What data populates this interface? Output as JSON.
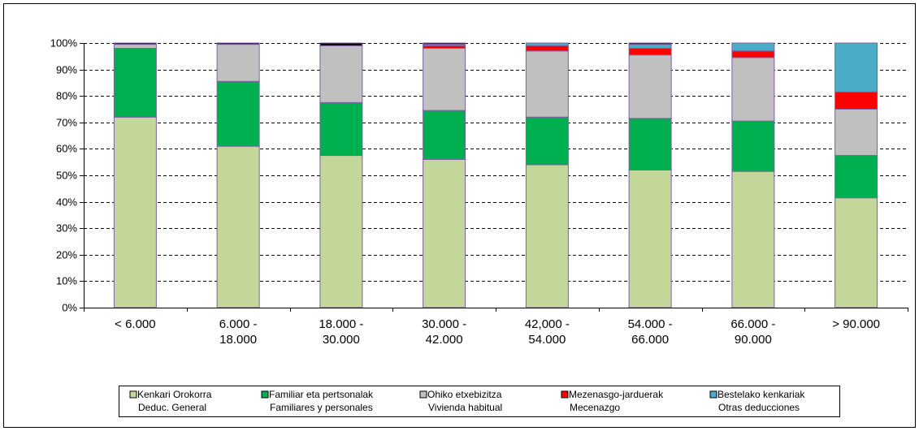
{
  "chart_data": {
    "type": "bar",
    "stacked": true,
    "categories": [
      [
        "< 6.000"
      ],
      [
        "6.000 -",
        "18.000"
      ],
      [
        "18.000 -",
        "30.000"
      ],
      [
        "30.000 -",
        "42.000"
      ],
      [
        "42,000 -",
        "54.000"
      ],
      [
        "54.000 -",
        "66.000"
      ],
      [
        "66.000 -",
        "90.000"
      ],
      [
        "> 90.000"
      ]
    ],
    "ylim": [
      0,
      100
    ],
    "yticks": [
      "0%",
      "10%",
      "20%",
      "30%",
      "40%",
      "50%",
      "60%",
      "70%",
      "80%",
      "90%",
      "100%"
    ],
    "grid": true,
    "legend_position": "bottom",
    "series": [
      {
        "name": [
          "Kenkari Orokorra",
          "Deduc. General"
        ],
        "color": "#c4d79b",
        "values": [
          72,
          61,
          57.5,
          56,
          54,
          52,
          51.5,
          41.5
        ]
      },
      {
        "name": [
          "Familiar eta pertsonalak",
          "Familiares y personales"
        ],
        "color": "#00b050",
        "values": [
          26,
          24.5,
          20,
          18.5,
          18,
          19.5,
          19,
          16
        ]
      },
      {
        "name": [
          "Ohiko etxebizitza",
          "Vivienda habitual"
        ],
        "color": "#c0c0c0",
        "values": [
          1.5,
          14,
          21.5,
          23.5,
          25,
          24,
          24,
          17.5
        ]
      },
      {
        "name": [
          "Mezenasgo-jarduerak",
          "Mecenazgo"
        ],
        "color": "#ff0000",
        "values": [
          0,
          0,
          0,
          1,
          2,
          2.5,
          2.5,
          6.5
        ]
      },
      {
        "name": [
          "Bestelako kenkariak",
          "Otras deducciones"
        ],
        "color": "#4bacc6",
        "values": [
          0,
          0,
          0,
          0.5,
          1,
          1.5,
          3,
          18.5
        ]
      },
      {
        "name": [
          "",
          ""
        ],
        "color": "#000000",
        "values": [
          0.5,
          0.5,
          1,
          0.5,
          0,
          0.5,
          0,
          0
        ]
      }
    ]
  }
}
